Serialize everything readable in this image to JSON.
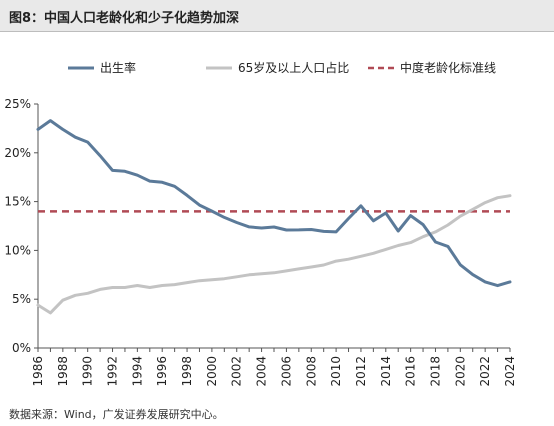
{
  "figure": {
    "title": "图8：中国人口老龄化和少子化趋势加深",
    "source": "数据来源：Wind，广发证券发展研究中心。"
  },
  "chart_data": {
    "type": "line",
    "x": [
      1986,
      1987,
      1988,
      1989,
      1990,
      1991,
      1992,
      1993,
      1994,
      1995,
      1996,
      1997,
      1998,
      1999,
      2000,
      2001,
      2002,
      2003,
      2004,
      2005,
      2006,
      2007,
      2008,
      2009,
      2010,
      2011,
      2012,
      2013,
      2014,
      2015,
      2016,
      2017,
      2018,
      2019,
      2020,
      2021,
      2022,
      2023,
      2024
    ],
    "series": [
      {
        "name": "出生率",
        "color": "#5b7a99",
        "dash": "",
        "values": [
          22.4,
          23.3,
          22.4,
          21.6,
          21.1,
          19.7,
          18.2,
          18.1,
          17.7,
          17.1,
          16.98,
          16.57,
          15.64,
          14.64,
          14.03,
          13.38,
          12.86,
          12.41,
          12.29,
          12.4,
          12.09,
          12.1,
          12.14,
          11.95,
          11.9,
          13.27,
          14.57,
          13.03,
          13.83,
          11.99,
          13.57,
          12.64,
          10.86,
          10.41,
          8.52,
          7.52,
          6.77,
          6.39,
          6.77
        ]
      },
      {
        "name": "65岁及以上人口占比",
        "color": "#c3c3c3",
        "dash": "",
        "values": [
          4.4,
          3.6,
          4.9,
          5.4,
          5.6,
          6.0,
          6.2,
          6.2,
          6.4,
          6.2,
          6.4,
          6.5,
          6.7,
          6.9,
          7.0,
          7.1,
          7.3,
          7.5,
          7.6,
          7.7,
          7.9,
          8.1,
          8.3,
          8.5,
          8.9,
          9.1,
          9.4,
          9.7,
          10.1,
          10.5,
          10.8,
          11.4,
          11.9,
          12.6,
          13.5,
          14.2,
          14.9,
          15.4,
          15.6
        ]
      },
      {
        "name": "中度老龄化标准线",
        "color": "#b04a55",
        "dash": "7,5",
        "values": [
          14,
          14,
          14,
          14,
          14,
          14,
          14,
          14,
          14,
          14,
          14,
          14,
          14,
          14,
          14,
          14,
          14,
          14,
          14,
          14,
          14,
          14,
          14,
          14,
          14,
          14,
          14,
          14,
          14,
          14,
          14,
          14,
          14,
          14,
          14,
          14,
          14,
          14,
          14
        ]
      }
    ],
    "ylim": [
      0,
      25
    ],
    "yticks": [
      0,
      5,
      10,
      15,
      20,
      25
    ],
    "ytick_labels": [
      "0%",
      "5%",
      "10%",
      "15%",
      "20%",
      "25%"
    ],
    "xticks": [
      1986,
      1988,
      1990,
      1992,
      1994,
      1996,
      1998,
      2000,
      2002,
      2004,
      2006,
      2008,
      2010,
      2012,
      2014,
      2016,
      2018,
      2020,
      2022,
      2024
    ],
    "xtick_labels": [
      "1986",
      "1988",
      "1990",
      "1992",
      "1994",
      "1996",
      "1998",
      "2000",
      "2002",
      "2004",
      "2006",
      "2008",
      "2010",
      "2012",
      "2014",
      "2016",
      "2018",
      "2020",
      "2022",
      "2024"
    ],
    "xlabel": "",
    "ylabel": "",
    "grid": false,
    "legend_position": "top"
  }
}
